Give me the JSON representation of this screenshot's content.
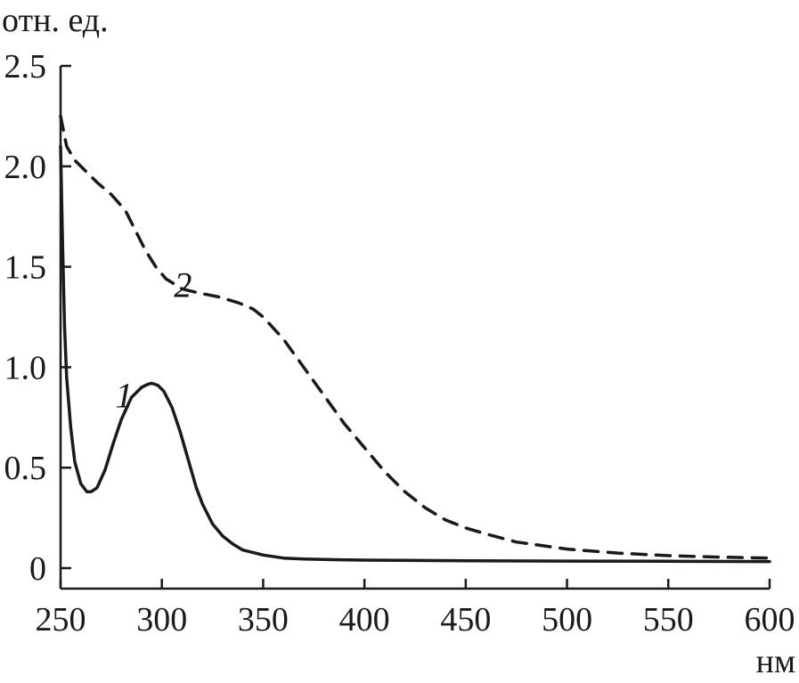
{
  "chart_data": {
    "type": "line",
    "ylabel": "отн. ед.",
    "xlabel": "нм",
    "xlim": [
      250,
      600
    ],
    "ylim": [
      0,
      2.5
    ],
    "x_ticks": [
      250,
      300,
      350,
      400,
      450,
      500,
      550,
      600
    ],
    "x_tick_labels": [
      "250",
      "300",
      "350",
      "400",
      "450",
      "500",
      "550",
      "600"
    ],
    "y_ticks": [
      0,
      0.5,
      1.0,
      1.5,
      2.0,
      2.5
    ],
    "y_tick_labels": [
      "0",
      "0.5",
      "1.0",
      "1.5",
      "2.0",
      "2.5"
    ],
    "grid": false,
    "series": [
      {
        "name": "1",
        "style": "solid",
        "color": "#1a1a1a",
        "label_at": [
          277,
          0.8
        ],
        "x": [
          250,
          251,
          252,
          253,
          255,
          257,
          260,
          263,
          265,
          268,
          272,
          276,
          280,
          285,
          290,
          293,
          295,
          298,
          301,
          305,
          309,
          313,
          317,
          320,
          325,
          330,
          335,
          340,
          350,
          360,
          370,
          380,
          400,
          450,
          500,
          550,
          600
        ],
        "y": [
          2.1,
          1.6,
          1.2,
          0.95,
          0.7,
          0.53,
          0.42,
          0.38,
          0.38,
          0.4,
          0.49,
          0.62,
          0.74,
          0.85,
          0.9,
          0.915,
          0.92,
          0.91,
          0.88,
          0.8,
          0.68,
          0.54,
          0.4,
          0.32,
          0.22,
          0.16,
          0.12,
          0.09,
          0.065,
          0.05,
          0.045,
          0.043,
          0.04,
          0.037,
          0.035,
          0.034,
          0.033
        ]
      },
      {
        "name": "2",
        "style": "dashed",
        "color": "#1a1a1a",
        "label_at": [
          306,
          1.35
        ],
        "x": [
          250,
          253,
          257,
          262,
          268,
          275,
          282,
          287,
          292,
          297,
          302,
          310,
          318,
          328,
          338,
          345,
          350,
          360,
          370,
          380,
          390,
          400,
          410,
          420,
          430,
          440,
          450,
          460,
          475,
          500,
          525,
          550,
          575,
          600
        ],
        "y": [
          2.25,
          2.1,
          2.03,
          1.98,
          1.92,
          1.86,
          1.78,
          1.68,
          1.58,
          1.5,
          1.44,
          1.39,
          1.37,
          1.35,
          1.32,
          1.29,
          1.25,
          1.14,
          1.0,
          0.86,
          0.72,
          0.6,
          0.48,
          0.38,
          0.3,
          0.24,
          0.2,
          0.17,
          0.13,
          0.095,
          0.075,
          0.062,
          0.055,
          0.05
        ]
      }
    ]
  }
}
